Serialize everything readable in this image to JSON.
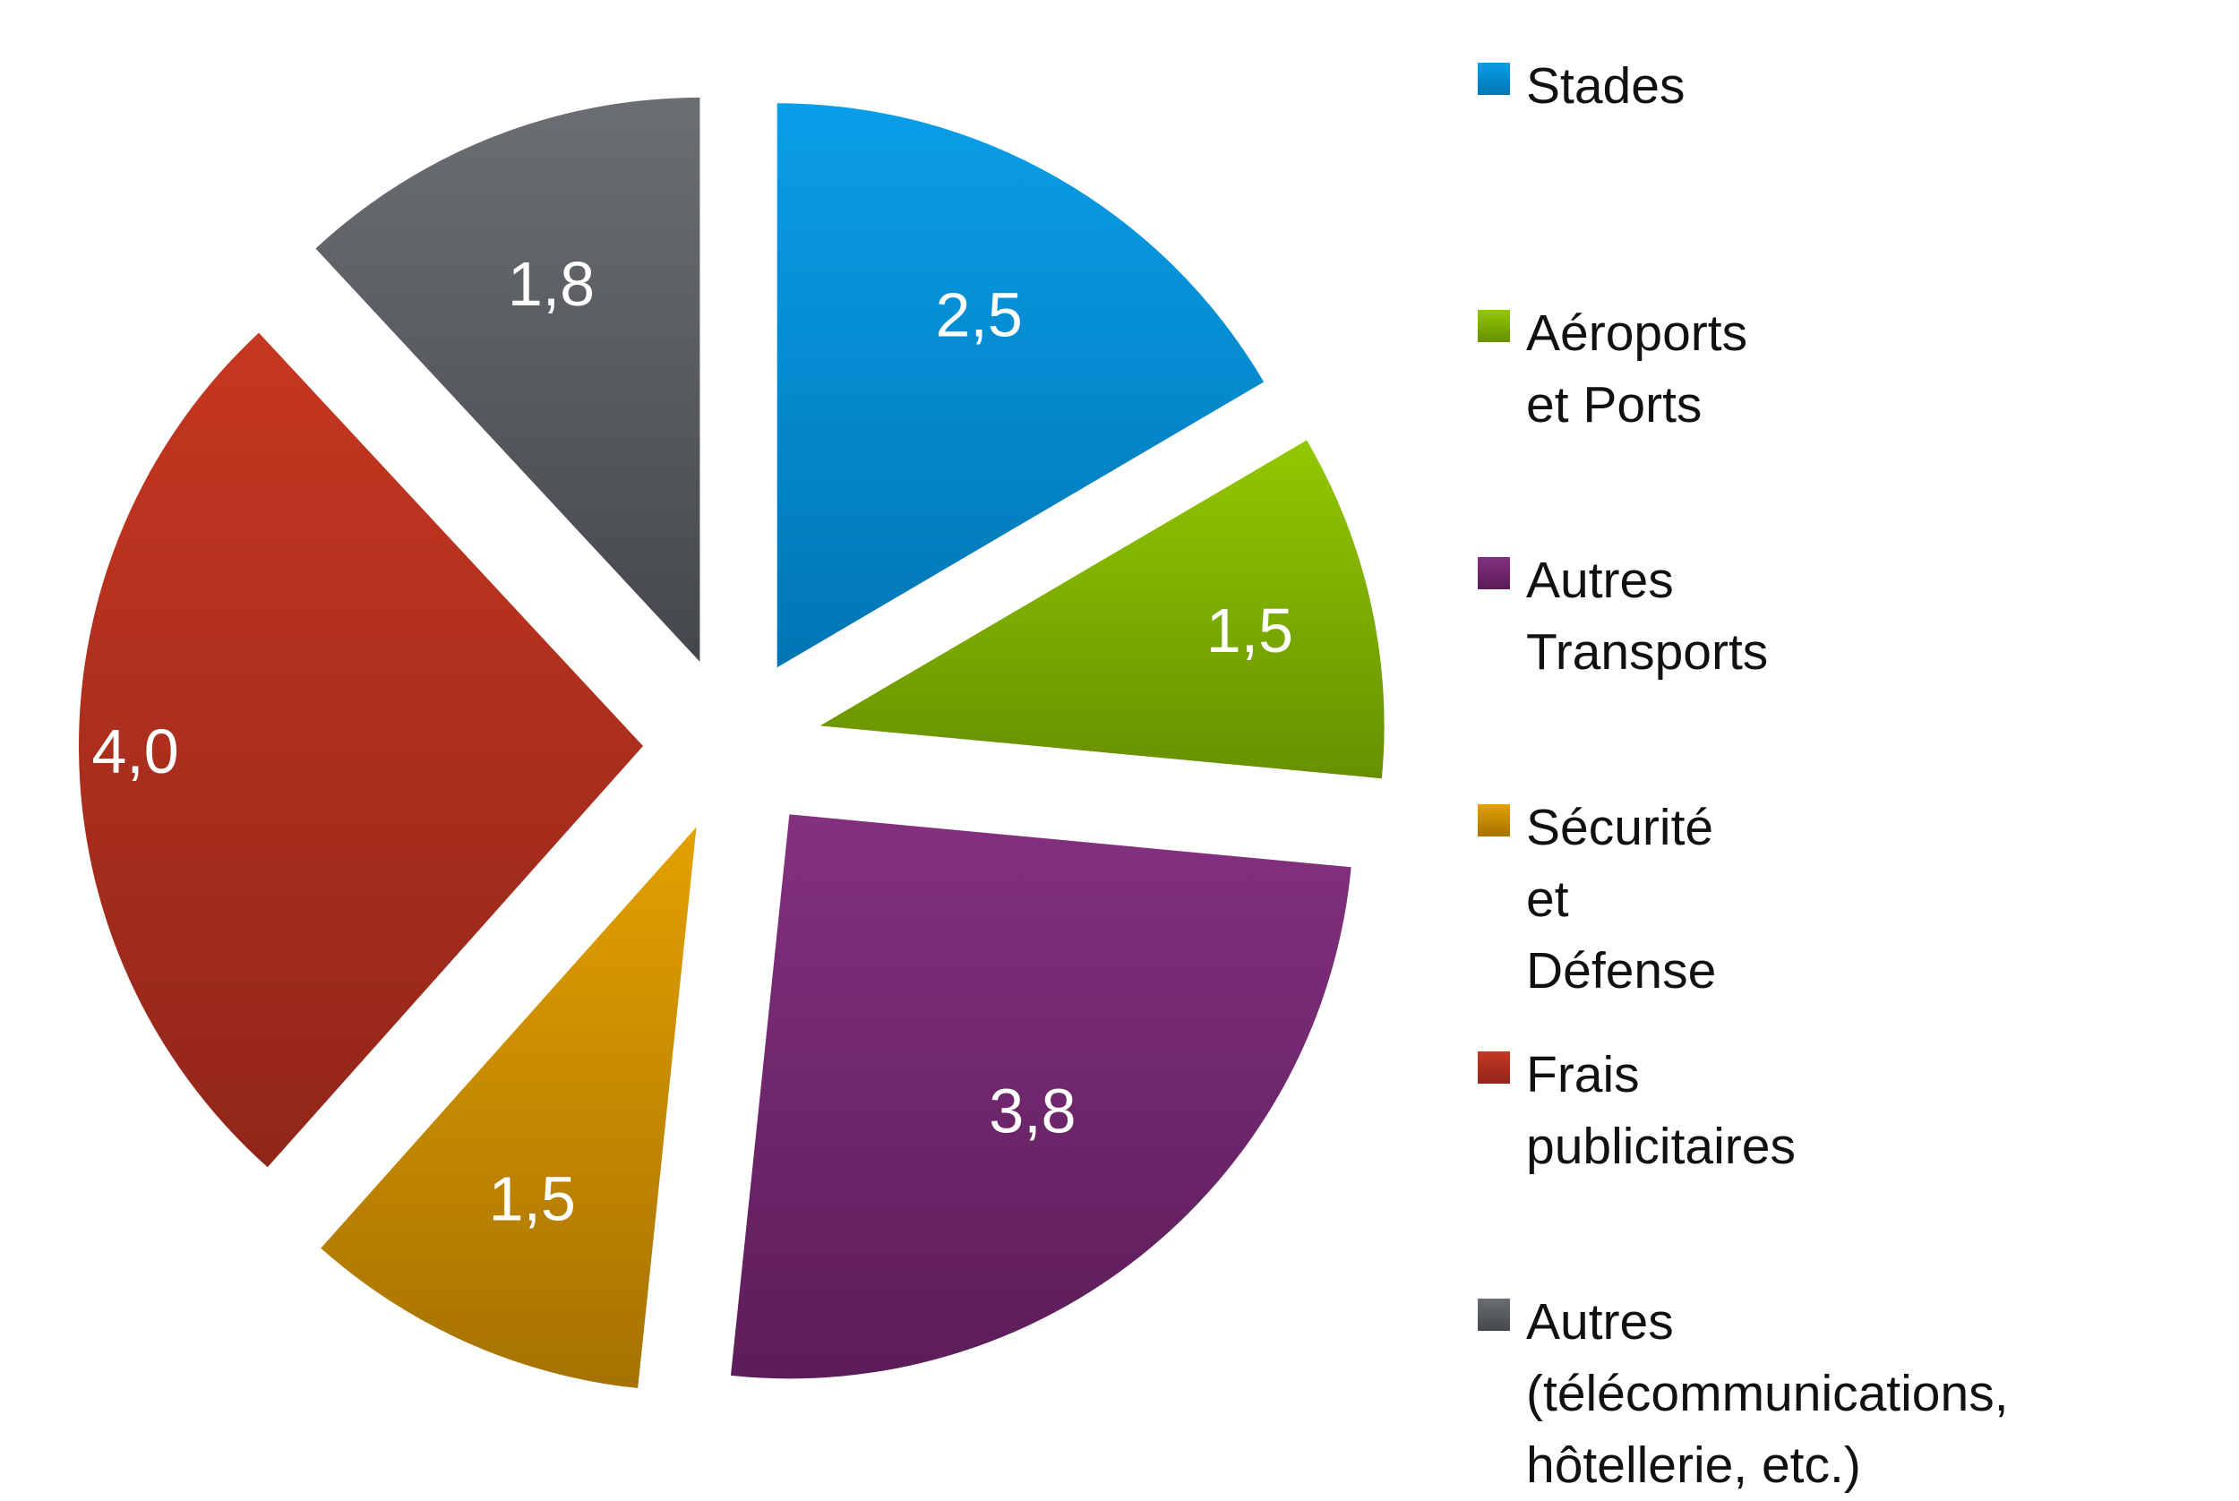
{
  "chart_data": {
    "type": "pie",
    "exploded": true,
    "start_angle": "top",
    "direction": "clockwise",
    "legend_position": "right",
    "categories": [
      "Stades",
      "Aéroports et Ports",
      "Autres Transports",
      "Sécurité et Défense",
      "Frais publicitaires",
      "Autres (télécommunications, hôtellerie, etc.)"
    ],
    "values": [
      2.5,
      1.5,
      3.8,
      1.5,
      4.0,
      1.8
    ],
    "data_labels": [
      "2,5",
      "1,5",
      "3,8",
      "1,5",
      "4,0",
      "1,8"
    ],
    "colors": [
      [
        "#0a9ee8",
        "#0076b4"
      ],
      [
        "#92c800",
        "#679000"
      ],
      [
        "#83317f",
        "#5c1c59"
      ],
      [
        "#e3a000",
        "#a67200"
      ],
      [
        "#c63720",
        "#91261a"
      ],
      [
        "#6b6e72",
        "#44474b"
      ]
    ],
    "legend_labels": [
      "Stades",
      "Aéroports et Ports",
      "Autres Transports",
      "Sécurité et Défense",
      "Frais publicitaires",
      "Autres (télécommunications,\nhôtellerie, etc.)"
    ]
  }
}
